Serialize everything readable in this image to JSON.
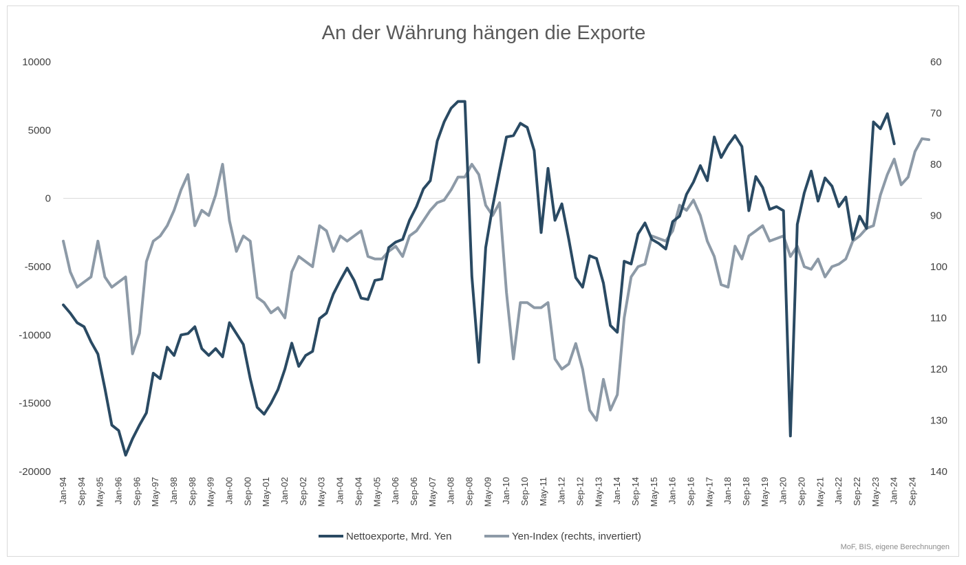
{
  "chart_data": {
    "type": "line",
    "title": "An der Währung hängen die Exporte",
    "source": "MoF, BIS, eigene Berechnungen",
    "x_tick_labels": [
      "Jan-94",
      "Sep-94",
      "May-95",
      "Jan-96",
      "Sep-96",
      "May-97",
      "Jan-98",
      "Sep-98",
      "May-99",
      "Jan-00",
      "Sep-00",
      "May-01",
      "Jan-02",
      "Sep-02",
      "May-03",
      "Jan-04",
      "Sep-04",
      "May-05",
      "Jan-06",
      "Sep-06",
      "May-07",
      "Jan-08",
      "Sep-08",
      "May-09",
      "Jan-10",
      "Sep-10",
      "May-11",
      "Jan-12",
      "Sep-12",
      "May-13",
      "Jan-14",
      "Sep-14",
      "May-15",
      "Jan-16",
      "Sep-16",
      "May-17",
      "Jan-18",
      "Sep-18",
      "May-19",
      "Jan-20",
      "Sep-20",
      "May-21",
      "Jan-22",
      "Sep-22",
      "May-23",
      "Jan-24",
      "Sep-24"
    ],
    "x_range": [
      "Jan-94",
      "Jan-25"
    ],
    "x_step": "quarter",
    "y_left": {
      "min": -20000,
      "max": 10000,
      "ticks": [
        10000,
        5000,
        0,
        -5000,
        -10000,
        -15000,
        -20000
      ]
    },
    "y_right": {
      "min": 60,
      "max": 140,
      "inverted": true,
      "ticks": [
        60,
        70,
        80,
        90,
        100,
        110,
        120,
        130,
        140
      ]
    },
    "legend_position": "bottom",
    "zero_line": true,
    "series": [
      {
        "name": "Nettoexporte, Mrd. Yen",
        "axis": "left",
        "color": "#2a4a63",
        "x_start": "Jan-94",
        "values": [
          -7800,
          -8400,
          -9100,
          -9400,
          -10500,
          -11400,
          -13900,
          -16600,
          -17000,
          -18800,
          -17600,
          -16600,
          -15700,
          -12800,
          -13200,
          -10900,
          -11500,
          -10000,
          -9900,
          -9400,
          -11000,
          -11500,
          -11000,
          -11600,
          -9100,
          -9900,
          -10700,
          -13200,
          -15300,
          -15800,
          -15000,
          -14000,
          -12500,
          -10600,
          -12300,
          -11500,
          -11200,
          -8800,
          -8400,
          -7000,
          -6000,
          -5100,
          -6000,
          -7300,
          -7400,
          -6000,
          -5900,
          -3600,
          -3200,
          -3000,
          -1600,
          -600,
          700,
          1300,
          4200,
          5600,
          6600,
          7100,
          7100,
          -5700,
          -12000,
          -3600,
          -600,
          2000,
          4500,
          4600,
          5500,
          5200,
          3500,
          -2500,
          2200,
          -1600,
          -400,
          -3000,
          -5800,
          -6500,
          -4200,
          -4400,
          -6200,
          -9300,
          -9800,
          -4600,
          -4800,
          -2600,
          -1800,
          -3000,
          -3300,
          -3700,
          -1700,
          -1300,
          300,
          1200,
          2400,
          1300,
          4500,
          3000,
          3900,
          4600,
          3800,
          -900,
          1600,
          800,
          -800,
          -600,
          -900,
          -17400,
          -1900,
          400,
          2000,
          -200,
          1500,
          900,
          -600,
          100,
          -3000,
          -1300,
          -2200,
          5600,
          5100,
          6200,
          4000
        ]
      },
      {
        "name": "Yen-Index (rechts, invertiert)",
        "axis": "right",
        "color": "#8d9aa7",
        "x_start": "Jan-94",
        "values": [
          95,
          101,
          104,
          103,
          102,
          95,
          102,
          104,
          103,
          102,
          117,
          113,
          99,
          95,
          94,
          92,
          89,
          85,
          82,
          92,
          89,
          90,
          86,
          80,
          91,
          97,
          94,
          95,
          106,
          107,
          109,
          108,
          110,
          101,
          98,
          99,
          100,
          92,
          93,
          97,
          94,
          95,
          94,
          93,
          98,
          98.5,
          98.5,
          97,
          96,
          98,
          94,
          93,
          91,
          89,
          87.5,
          87,
          85,
          82.5,
          82.5,
          80,
          82,
          88,
          90,
          87.5,
          105,
          118,
          107,
          107,
          108,
          108,
          107,
          118,
          120,
          119,
          115,
          120,
          128,
          130,
          122,
          128,
          125,
          110,
          102,
          100,
          99.5,
          94,
          94.5,
          95,
          93,
          88,
          89,
          87,
          90,
          95,
          98,
          103.5,
          104,
          96,
          98.5,
          94,
          93,
          92,
          95,
          94.5,
          94,
          98,
          96,
          100,
          100.5,
          98.5,
          102,
          100,
          99.5,
          98.5,
          95,
          94,
          92.5,
          92,
          86,
          82,
          79,
          84,
          82.5,
          77.5,
          75,
          75.2
        ]
      }
    ]
  }
}
